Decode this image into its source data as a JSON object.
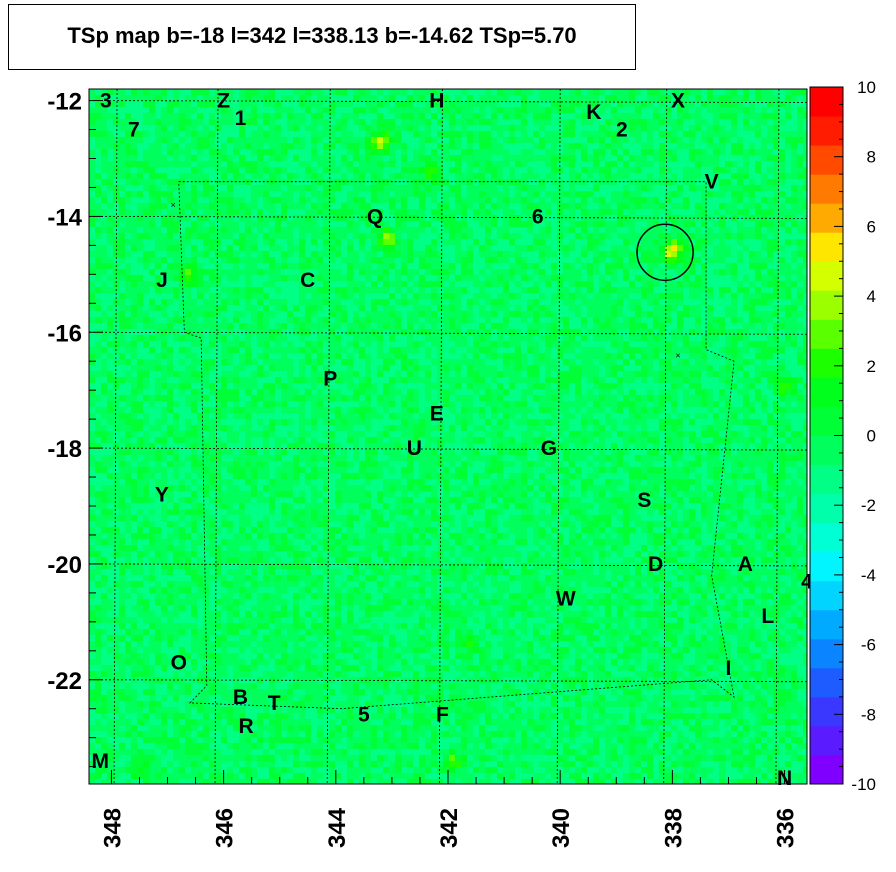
{
  "title": "TSp map b=-18 l=342 l=338.13 b=-14.62 TSp=5.70",
  "chart_data": {
    "type": "heatmap",
    "x_axis": {
      "range": [
        348.4,
        335.6
      ],
      "reversed": true,
      "ticks": [
        348,
        346,
        344,
        342,
        340,
        338,
        336
      ]
    },
    "y_axis": {
      "range": [
        -23.8,
        -11.8
      ],
      "ticks": [
        -12,
        -14,
        -16,
        -18,
        -20,
        -22
      ]
    },
    "colorbar": {
      "range": [
        -10,
        10
      ],
      "ticks": [
        10,
        8,
        6,
        4,
        2,
        0,
        -2,
        -4,
        -6,
        -8,
        -10
      ],
      "colors": [
        "#7f00ff",
        "#5a1cff",
        "#3a37ff",
        "#1e5cff",
        "#0a84ff",
        "#00aaff",
        "#00d4ff",
        "#00f5ff",
        "#00ffd4",
        "#00ffaa",
        "#00ff84",
        "#00ff5c",
        "#00ff37",
        "#00ff1c",
        "#1cff00",
        "#5aff00",
        "#9cff00",
        "#d4ff00",
        "#ffe600",
        "#ffaa00",
        "#ff7a00",
        "#ff4a00",
        "#ff1c00",
        "#ff0000"
      ]
    },
    "background_level": -0.5,
    "hotspots": [
      {
        "l": 343.2,
        "b": -12.7,
        "value": 5
      },
      {
        "l": 342.3,
        "b": -13.2,
        "value": 3
      },
      {
        "l": 338.0,
        "b": -14.6,
        "value": 5.7
      },
      {
        "l": 346.6,
        "b": -15.0,
        "value": 3
      },
      {
        "l": 343.1,
        "b": -14.4,
        "value": 4
      },
      {
        "l": 341.6,
        "b": -21.4,
        "value": 2
      },
      {
        "l": 336.0,
        "b": -16.9,
        "value": 3
      },
      {
        "l": 347.5,
        "b": -23.5,
        "value": 2
      },
      {
        "l": 341.9,
        "b": -23.4,
        "value": 3
      }
    ],
    "circle": {
      "l": 338.13,
      "b": -14.62,
      "radius_deg": 0.5
    },
    "marks": [
      {
        "l": 346.9,
        "b": -13.8
      },
      {
        "l": 337.9,
        "b": -16.4
      }
    ],
    "grid_b": [
      -12,
      -14,
      -16,
      -18,
      -20,
      -22
    ],
    "grid_l": [
      347.9,
      346.1,
      344.1,
      342.1,
      340.0,
      338.1,
      336.1
    ],
    "labels": [
      {
        "text": "3",
        "l": 348.1,
        "b": -12.0
      },
      {
        "text": "7",
        "l": 347.6,
        "b": -12.5
      },
      {
        "text": "Z",
        "l": 346.0,
        "b": -12.0
      },
      {
        "text": "1",
        "l": 345.7,
        "b": -12.3
      },
      {
        "text": "H",
        "l": 342.2,
        "b": -12.0
      },
      {
        "text": "K",
        "l": 339.4,
        "b": -12.2
      },
      {
        "text": "2",
        "l": 338.9,
        "b": -12.5
      },
      {
        "text": "X",
        "l": 337.9,
        "b": -12.0
      },
      {
        "text": "V",
        "l": 337.3,
        "b": -13.4
      },
      {
        "text": "Q",
        "l": 343.3,
        "b": -14.0
      },
      {
        "text": "6",
        "l": 340.4,
        "b": -14.0
      },
      {
        "text": "J",
        "l": 347.1,
        "b": -15.1
      },
      {
        "text": "C",
        "l": 344.5,
        "b": -15.1
      },
      {
        "text": "P",
        "l": 344.1,
        "b": -16.8
      },
      {
        "text": "E",
        "l": 342.2,
        "b": -17.4
      },
      {
        "text": "U",
        "l": 342.6,
        "b": -18.0
      },
      {
        "text": "G",
        "l": 340.2,
        "b": -18.0
      },
      {
        "text": "Y",
        "l": 347.1,
        "b": -18.8
      },
      {
        "text": "S",
        "l": 338.5,
        "b": -18.9
      },
      {
        "text": "D",
        "l": 338.3,
        "b": -20.0
      },
      {
        "text": "A",
        "l": 336.7,
        "b": -20.0
      },
      {
        "text": "4",
        "l": 335.6,
        "b": -20.3
      },
      {
        "text": "W",
        "l": 339.9,
        "b": -20.6
      },
      {
        "text": "L",
        "l": 336.3,
        "b": -20.9
      },
      {
        "text": "O",
        "l": 346.8,
        "b": -21.7
      },
      {
        "text": "I",
        "l": 337.0,
        "b": -21.8
      },
      {
        "text": "B",
        "l": 345.7,
        "b": -22.3
      },
      {
        "text": "T",
        "l": 345.1,
        "b": -22.4
      },
      {
        "text": "5",
        "l": 343.5,
        "b": -22.6
      },
      {
        "text": "F",
        "l": 342.1,
        "b": -22.6
      },
      {
        "text": "R",
        "l": 345.6,
        "b": -22.8
      },
      {
        "text": "M",
        "l": 348.2,
        "b": -23.4
      },
      {
        "text": "N",
        "l": 336.0,
        "b": -23.7
      }
    ]
  }
}
